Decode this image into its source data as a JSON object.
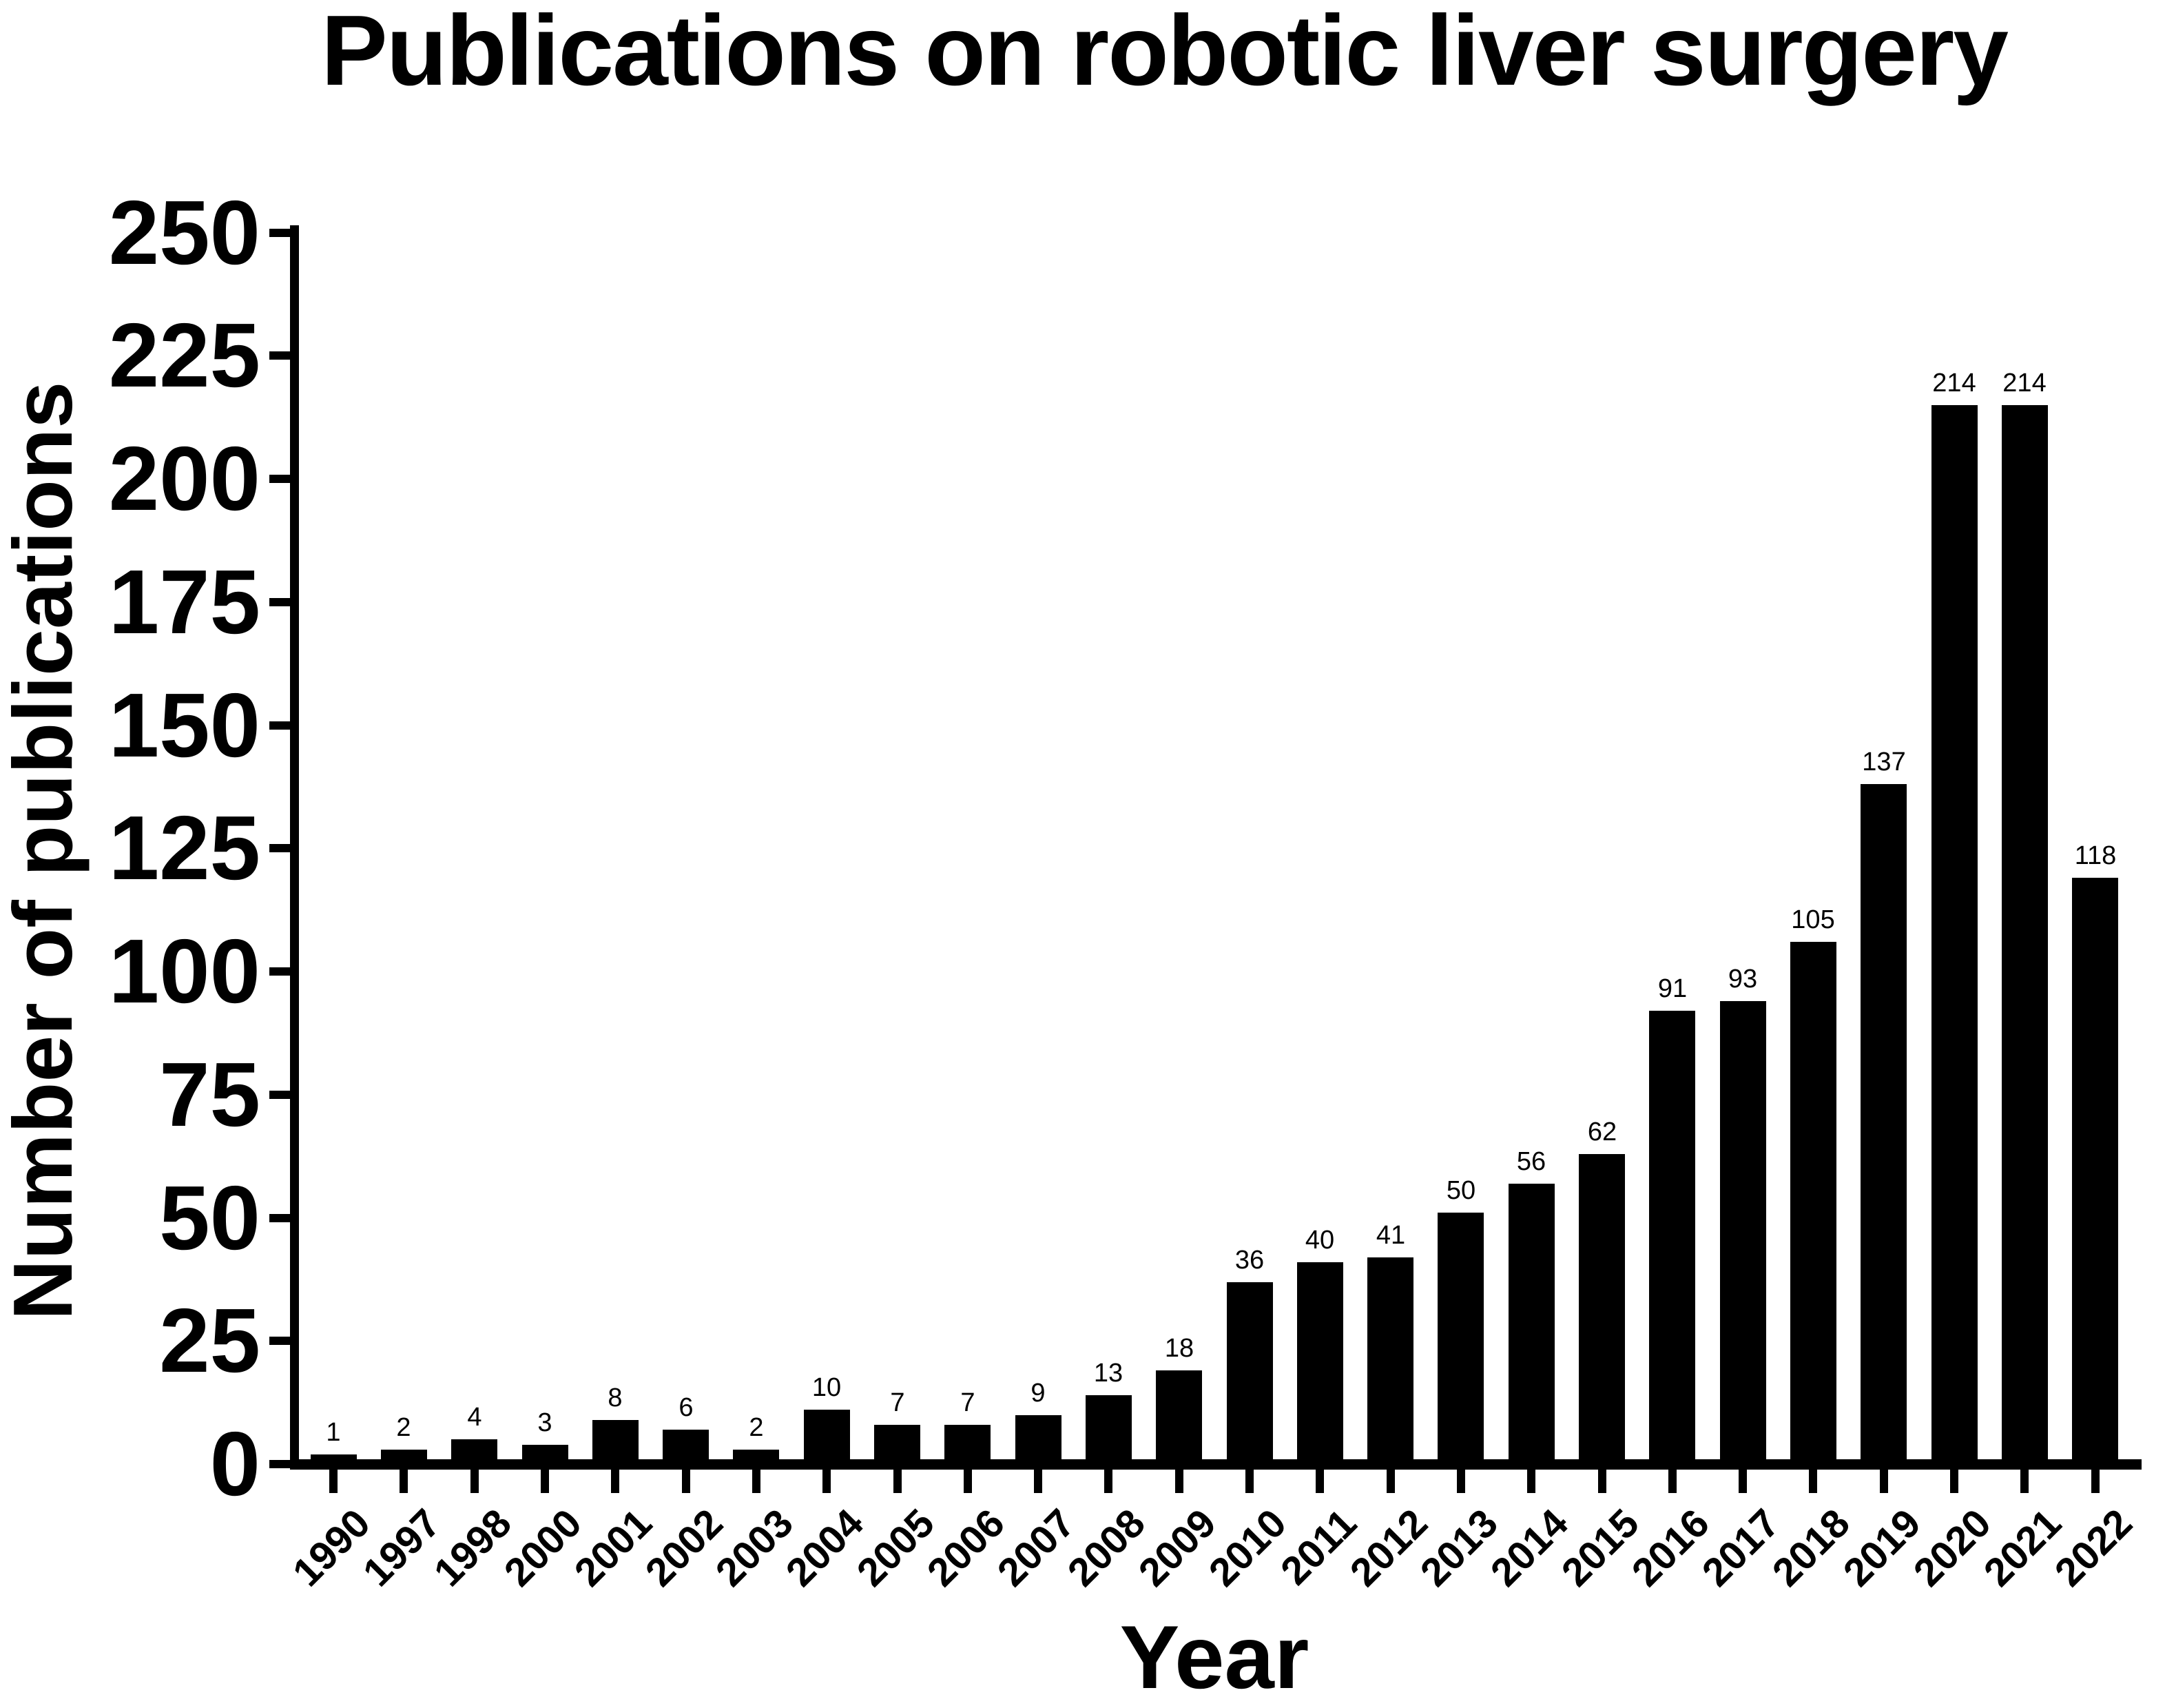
{
  "chart_data": {
    "type": "bar",
    "title": "Publications on robotic liver surgery",
    "xlabel": "Year",
    "ylabel": "Number of publications",
    "categories": [
      "1990",
      "1997",
      "1998",
      "2000",
      "2001",
      "2002",
      "2003",
      "2004",
      "2005",
      "2006",
      "2007",
      "2008",
      "2009",
      "2010",
      "2011",
      "2012",
      "2013",
      "2014",
      "2015",
      "2016",
      "2017",
      "2018",
      "2019",
      "2020",
      "2021",
      "2022"
    ],
    "values": [
      1,
      2,
      4,
      3,
      8,
      6,
      2,
      10,
      7,
      7,
      9,
      13,
      18,
      36,
      40,
      41,
      50,
      56,
      62,
      91,
      93,
      105,
      137,
      214,
      214,
      118
    ],
    "ylim": [
      0,
      250
    ],
    "yticks": [
      0,
      25,
      50,
      75,
      100,
      125,
      150,
      175,
      200,
      225,
      250
    ],
    "bar_value_labels_shown": true,
    "grid": false,
    "legend": null,
    "bar_color": "#000000",
    "text_color": "#000000",
    "background_color": "#ffffff"
  }
}
